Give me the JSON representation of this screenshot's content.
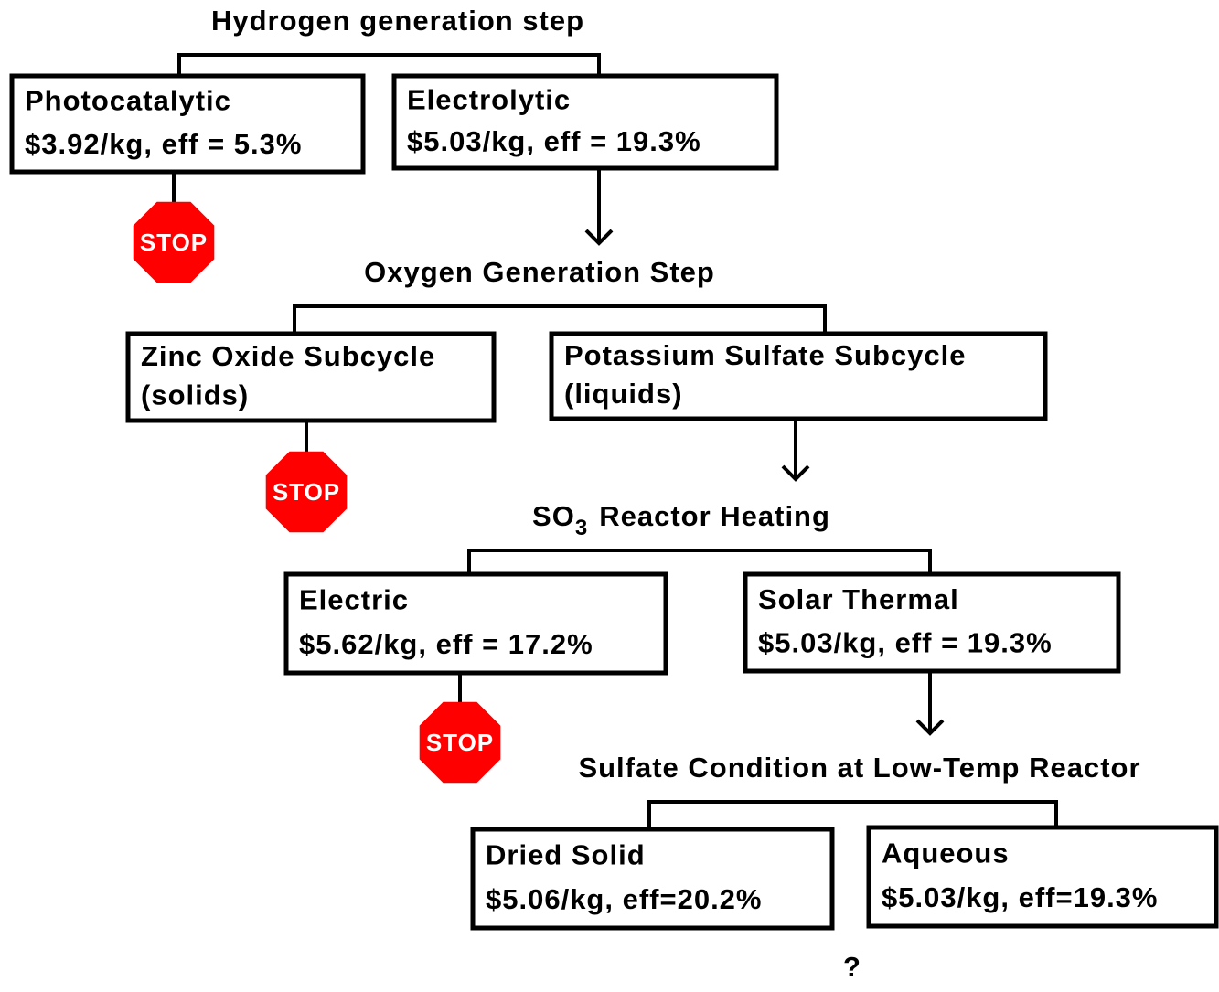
{
  "steps": [
    {
      "title": "Hydrogen generation step",
      "options": [
        {
          "label": "Photocatalytic",
          "detail": "$3.92/kg, eff = 5.3%",
          "stop": "STOP"
        },
        {
          "label": "Electrolytic",
          "detail": "$5.03/kg, eff = 19.3%"
        }
      ]
    },
    {
      "title": "Oxygen Generation Step",
      "options": [
        {
          "label": "Zinc Oxide Subcycle",
          "detail": "(solids)",
          "stop": "STOP"
        },
        {
          "label": "Potassium Sulfate Subcycle",
          "detail": "(liquids)"
        }
      ]
    },
    {
      "title": {
        "main": "SO",
        "sub": "3",
        "rest": "Reactor Heating"
      },
      "options": [
        {
          "label": "Electric",
          "detail": "$5.62/kg, eff = 17.2%",
          "stop": "STOP"
        },
        {
          "label": "Solar Thermal",
          "detail": "$5.03/kg, eff = 19.3%"
        }
      ]
    },
    {
      "title": "Sulfate Condition at Low-Temp Reactor",
      "options": [
        {
          "label": "Dried Solid",
          "detail": "$5.06/kg, eff=20.2%"
        },
        {
          "label": "Aqueous",
          "detail": "$5.03/kg, eff=19.3%"
        }
      ]
    }
  ],
  "outcome": "?"
}
